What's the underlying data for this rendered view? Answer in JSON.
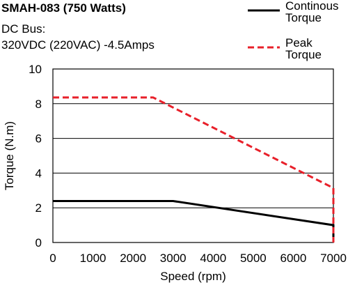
{
  "header": {
    "title": "SMAH-083 (750 Watts)",
    "line1": "DC Bus:",
    "line2": "320VDC (220VAC)  -4.5Amps"
  },
  "chart_data": {
    "type": "line",
    "title": "SMAH-083 (750 Watts)",
    "xlabel": "Speed (rpm)",
    "ylabel": "Torque (N.m)",
    "xlim": [
      0,
      7000
    ],
    "ylim": [
      0,
      10
    ],
    "x_ticks": [
      0,
      1000,
      2000,
      3000,
      4000,
      5000,
      6000,
      7000
    ],
    "y_ticks": [
      0,
      2,
      4,
      6,
      8,
      10
    ],
    "grid": "horizontal",
    "legend_position": "top-right",
    "series": [
      {
        "name": "Continous Torque",
        "label_lines": [
          "Continous",
          "Torque"
        ],
        "style": "solid",
        "color": "#000000",
        "x": [
          0,
          3000,
          7000,
          7000
        ],
        "y": [
          2.39,
          2.39,
          1.0,
          0
        ]
      },
      {
        "name": "Peak Torque",
        "label_lines": [
          "Peak",
          "Torque"
        ],
        "style": "dashed",
        "color": "#e8202a",
        "x": [
          0,
          2500,
          7000,
          7000
        ],
        "y": [
          8.36,
          8.36,
          3.14,
          0
        ]
      }
    ]
  }
}
